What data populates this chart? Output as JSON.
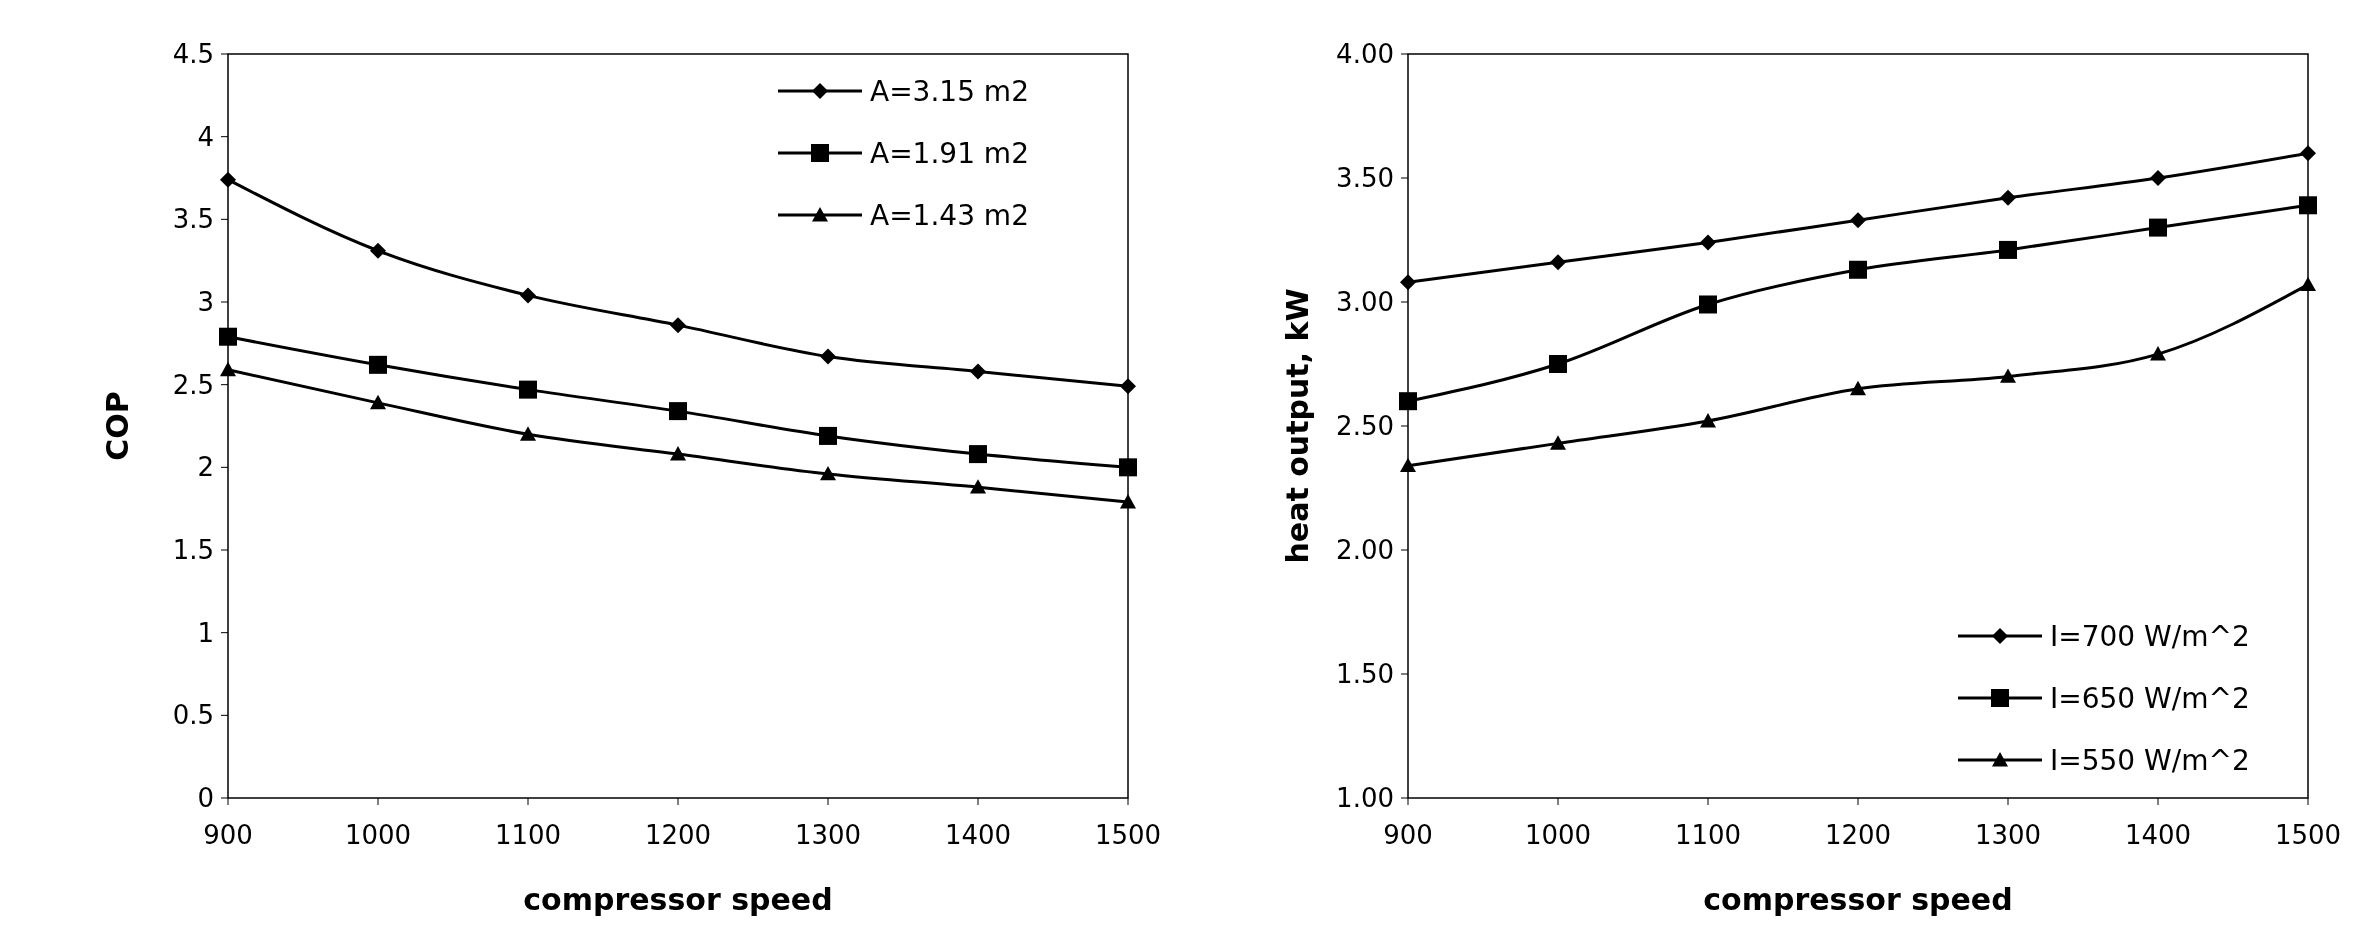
{
  "chart_data": [
    {
      "type": "line",
      "xlabel": "compressor speed",
      "ylabel": "COP",
      "x": [
        900,
        1000,
        1100,
        1200,
        1300,
        1400,
        1500
      ],
      "xlim": [
        900,
        1500
      ],
      "xticks": [
        900,
        1000,
        1100,
        1200,
        1300,
        1400,
        1500
      ],
      "ylim": [
        0,
        4.5
      ],
      "yticks": [
        0,
        0.5,
        1,
        1.5,
        2,
        2.5,
        3,
        3.5,
        4,
        4.5
      ],
      "legend": "top right",
      "grid": false,
      "series": [
        {
          "name": "A=3.15 m2",
          "color": "#000000",
          "marker": "diamond",
          "values": [
            3.74,
            3.31,
            3.04,
            2.86,
            2.67,
            2.58,
            2.49
          ]
        },
        {
          "name": "A=1.91 m2",
          "color": "#000000",
          "marker": "square",
          "values": [
            2.79,
            2.62,
            2.47,
            2.34,
            2.19,
            2.08,
            2.0
          ]
        },
        {
          "name": "A=1.43 m2",
          "color": "#000000",
          "marker": "triangle",
          "values": [
            2.59,
            2.39,
            2.2,
            2.08,
            1.96,
            1.88,
            1.79
          ]
        }
      ]
    },
    {
      "type": "line",
      "xlabel": "compressor speed",
      "ylabel": "heat output, kW",
      "x": [
        900,
        1000,
        1100,
        1200,
        1300,
        1400,
        1500
      ],
      "xlim": [
        900,
        1500
      ],
      "xticks": [
        900,
        1000,
        1100,
        1200,
        1300,
        1400,
        1500
      ],
      "ylim": [
        1,
        4
      ],
      "yticks": [
        {
          "value": 1,
          "label": "1.00"
        },
        {
          "value": 1.5,
          "label": "1.50"
        },
        {
          "value": 2,
          "label": "2.00"
        },
        {
          "value": 2.5,
          "label": "2.50"
        },
        {
          "value": 3,
          "label": "3.00"
        },
        {
          "value": 3.5,
          "label": "3.50"
        },
        {
          "value": 4,
          "label": "4.00"
        }
      ],
      "legend": "bottom right",
      "grid": false,
      "series": [
        {
          "name": "I=700 W/m^2",
          "color": "#000000",
          "marker": "diamond",
          "values": [
            3.08,
            3.16,
            3.24,
            3.33,
            3.42,
            3.5,
            3.6
          ]
        },
        {
          "name": "I=650 W/m^2",
          "color": "#000000",
          "marker": "square",
          "values": [
            2.6,
            2.75,
            2.99,
            3.13,
            3.21,
            3.3,
            3.39
          ]
        },
        {
          "name": "I=550 W/m^2",
          "color": "#000000",
          "marker": "triangle",
          "values": [
            2.34,
            2.43,
            2.52,
            2.65,
            2.7,
            2.79,
            3.07
          ]
        }
      ]
    }
  ]
}
